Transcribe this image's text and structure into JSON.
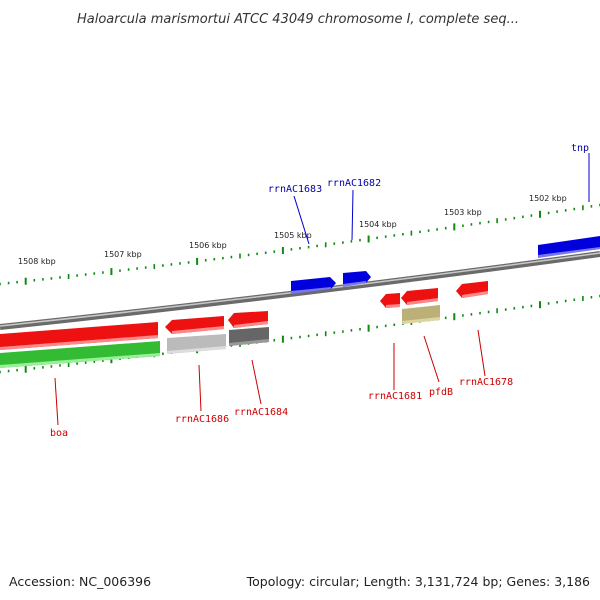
{
  "title": "Haloarcula marismortui ATCC 43049 chromosome I, complete seq...",
  "footer": {
    "accession": "Accession: NC_006396",
    "summary": "Topology: circular; Length: 3,131,724 bp; Genes: 3,186"
  },
  "ruler": {
    "ticks": [
      "1508 kbp",
      "1507 kbp",
      "1506 kbp",
      "1505 kbp",
      "1504 kbp",
      "1503 kbp",
      "1502 kbp"
    ]
  },
  "genes": [
    {
      "id": "tnp",
      "label": "tnp",
      "color": "#0000cc",
      "label_color": "#0000aa"
    },
    {
      "id": "rrnac1683",
      "label": "rrnAC1683",
      "color": "#0000cc",
      "label_color": "#0000aa"
    },
    {
      "id": "rrnac1682",
      "label": "rrnAC1682",
      "color": "#0000cc",
      "label_color": "#0000aa"
    },
    {
      "id": "boa",
      "label": "boa",
      "color": "#33bb33",
      "label_color": "#cc0000"
    },
    {
      "id": "rrnac1686",
      "label": "rrnAC1686",
      "color": "#bbbbbb",
      "label_color": "#cc0000"
    },
    {
      "id": "rrnac1684",
      "label": "rrnAC1684",
      "color": "#666666",
      "label_color": "#cc0000"
    },
    {
      "id": "rrnac1681",
      "label": "rrnAC1681",
      "color": "#ee1111",
      "label_color": "#cc0000"
    },
    {
      "id": "pfdb",
      "label": "pfdB",
      "color": "#bbb077",
      "label_color": "#cc0000"
    },
    {
      "id": "rrnac1678",
      "label": "rrnAC1678",
      "color": "#ee1111",
      "label_color": "#cc0000"
    }
  ],
  "colors": {
    "forward": "#0000cc",
    "reverse": "#ee1111",
    "backbone": "#888888",
    "ticks": "#118811"
  }
}
